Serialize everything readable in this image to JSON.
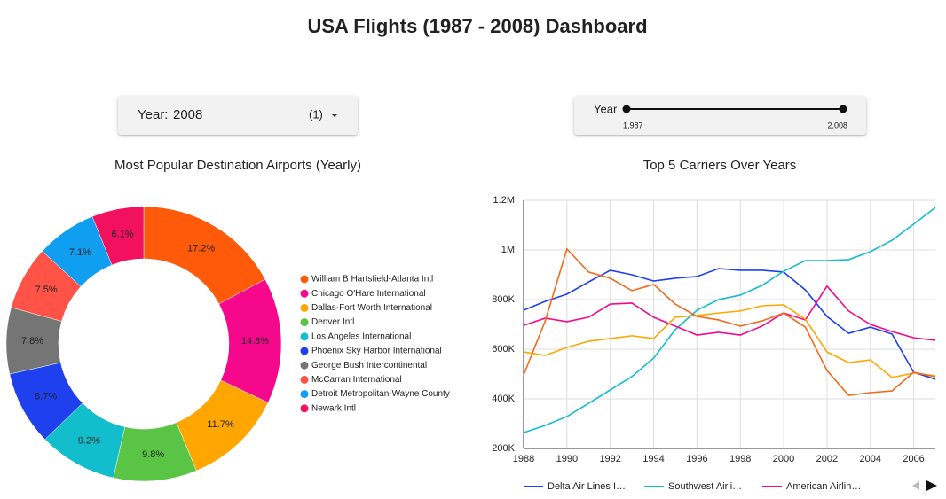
{
  "title": "USA Flights (1987 - 2008) Dashboard",
  "filter": {
    "label": "Year:",
    "value": "2008",
    "count": "(1)"
  },
  "slider": {
    "label": "Year",
    "min_label": "1,987",
    "max_label": "2,008"
  },
  "chart_data": [
    {
      "type": "pie",
      "title": "Most Popular Destination Airports (Yearly)",
      "categories": [
        "William B Hartsfield-Atlanta Intl",
        "Chicago O'Hare International",
        "Dallas-Fort Worth International",
        "Denver Intl",
        "Los Angeles International",
        "Phoenix Sky Harbor International",
        "George Bush Intercontinental",
        "McCarran International",
        "Detroit Metropolitan-Wayne County",
        "Newark Intl"
      ],
      "values": [
        17.2,
        14.8,
        11.7,
        9.8,
        9.2,
        8.7,
        7.8,
        7.5,
        7.1,
        6.1
      ],
      "value_labels": [
        "17.2%",
        "14.8%",
        "11.7%",
        "9.8%",
        "9.2%",
        "8.7%",
        "7.8%",
        "7.5%",
        "7.1%",
        "6.1%"
      ],
      "colors": [
        "#ff5a0a",
        "#f5088c",
        "#ffa600",
        "#5ac444",
        "#12bdcc",
        "#1e40ef",
        "#757575",
        "#ff5347",
        "#0f9ef0",
        "#f2115f"
      ],
      "donut": true,
      "legend": "right"
    },
    {
      "type": "line",
      "title": "Top 5 Carriers Over Years",
      "x": [
        1988,
        1989,
        1990,
        1991,
        1992,
        1993,
        1994,
        1995,
        1996,
        1997,
        1998,
        1999,
        2000,
        2001,
        2002,
        2003,
        2004,
        2005,
        2006,
        2007
      ],
      "xlim": [
        1988,
        2007
      ],
      "xticks": [
        1988,
        1990,
        1992,
        1994,
        1996,
        1998,
        2000,
        2002,
        2004,
        2006
      ],
      "ylim": [
        200000,
        1200000
      ],
      "yticks": [
        {
          "value": 200000,
          "label": "200K"
        },
        {
          "value": 400000,
          "label": "400K"
        },
        {
          "value": 600000,
          "label": "600K"
        },
        {
          "value": 800000,
          "label": "800K"
        },
        {
          "value": 1000000,
          "label": "1M"
        },
        {
          "value": 1200000,
          "label": "1.2M"
        }
      ],
      "grid": true,
      "legend": "bottom",
      "series": [
        {
          "name": "Delta Air Lines I…",
          "color": "#1e40ef",
          "values": [
            757000,
            793000,
            822000,
            871000,
            918000,
            900000,
            875000,
            886000,
            893000,
            925000,
            918000,
            918000,
            911000,
            839000,
            732000,
            664000,
            689000,
            661000,
            507000,
            479000
          ]
        },
        {
          "name": "Southwest Airli…",
          "color": "#12bdcc",
          "values": [
            264000,
            293000,
            329000,
            382000,
            436000,
            490000,
            564000,
            679000,
            757000,
            800000,
            818000,
            857000,
            914000,
            957000,
            957000,
            961000,
            993000,
            1039000,
            1104000,
            1171000
          ]
        },
        {
          "name": "American Airlin…",
          "color": "#f5088c",
          "values": [
            696000,
            725000,
            711000,
            729000,
            782000,
            786000,
            729000,
            693000,
            657000,
            668000,
            657000,
            693000,
            746000,
            718000,
            854000,
            754000,
            700000,
            671000,
            646000,
            636000
          ]
        },
        {
          "color": "#ffa600",
          "values": [
            589000,
            575000,
            607000,
            632000,
            643000,
            654000,
            643000,
            729000,
            736000,
            746000,
            754000,
            775000,
            779000,
            721000,
            589000,
            546000,
            557000,
            486000,
            504000,
            493000
          ]
        },
        {
          "color": "#f26a1b",
          "values": [
            496000,
            714000,
            1004000,
            911000,
            886000,
            836000,
            861000,
            782000,
            732000,
            718000,
            693000,
            714000,
            746000,
            689000,
            514000,
            414000,
            425000,
            432000,
            507000,
            489000
          ]
        }
      ]
    }
  ]
}
